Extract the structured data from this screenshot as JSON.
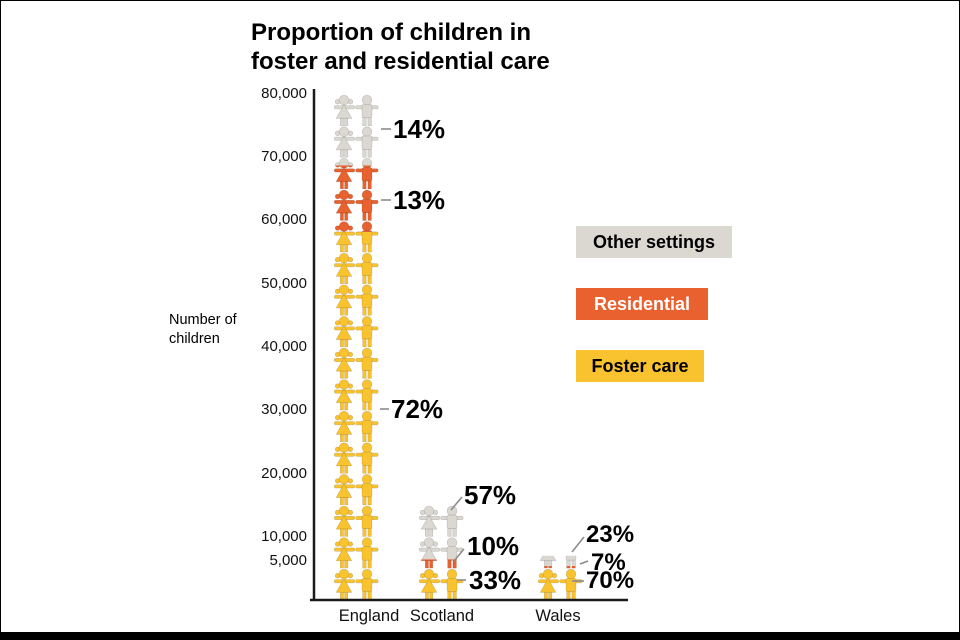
{
  "chart_data": {
    "type": "bar",
    "variant": "pictogram-stacked-column",
    "title": "Proportion of children in foster and residential care",
    "ylabel": "Number of children",
    "categories": [
      "England",
      "Scotland",
      "Wales"
    ],
    "totals_children": [
      80000,
      15000,
      7000
    ],
    "series": [
      {
        "name": "Foster care",
        "color": "#F9C32F",
        "percents": [
          72,
          33,
          70
        ]
      },
      {
        "name": "Residential",
        "color": "#E8612F",
        "percents": [
          13,
          10,
          7
        ]
      },
      {
        "name": "Other settings",
        "color": "#DBD8D2",
        "percents": [
          14,
          57,
          23
        ]
      }
    ],
    "yticks": [
      "80,000",
      "70,000",
      "60,000",
      "50,000",
      "40,000",
      "30,000",
      "20,000",
      "10,000",
      "5,000"
    ],
    "ytick_values": [
      80000,
      70000,
      60000,
      50000,
      40000,
      30000,
      20000,
      10000,
      5000
    ],
    "ylim": [
      0,
      80000
    ],
    "grid": false,
    "legend_position": "center-right",
    "annotations": {
      "england": {
        "other": "14%",
        "residential": "13%",
        "foster": "72%"
      },
      "scotland": {
        "other": "57%",
        "residential": "10%",
        "foster": "33%"
      },
      "wales": {
        "other": "23%",
        "residential": "7%",
        "foster": "70%"
      }
    }
  },
  "legend": [
    {
      "label": "Other settings",
      "bg": "#DBD8D2",
      "text_color": "#000000"
    },
    {
      "label": "Residential",
      "bg": "#E8612F",
      "text_color": "#FFFFFF"
    },
    {
      "label": "Foster care",
      "bg": "#F9C32F",
      "text_color": "#000000"
    }
  ],
  "colors": {
    "axis": "#1a1a1a",
    "leader_line": "#8c8c8c",
    "footer_bar": "#000000"
  }
}
